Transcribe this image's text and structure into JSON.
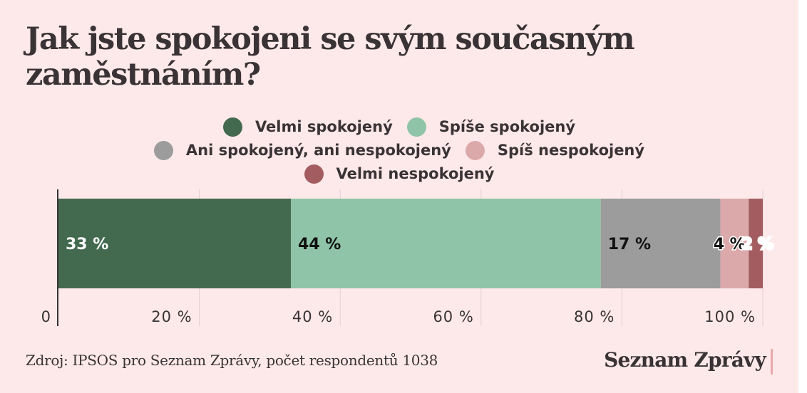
{
  "title": "Jak jste spokojeni se svým současným zaměstnáním?",
  "source": "Zdroj: IPSOS pro Seznam Zprávy, počet respondentů 1038",
  "brand": "Seznam Zprávy",
  "chart_data": {
    "type": "bar",
    "orientation": "horizontal-stacked",
    "title": "Jak jste spokojeni se svým současným zaměstnáním?",
    "categories": [
      ""
    ],
    "series": [
      {
        "name": "Velmi spokojený",
        "values": [
          33
        ],
        "label": "33 %",
        "color": "#43694e",
        "label_color": "#ffffff"
      },
      {
        "name": "Spíše spokojený",
        "values": [
          44
        ],
        "label": "44 %",
        "color": "#8fc4a8",
        "label_color": "#111111"
      },
      {
        "name": "Ani spokojený, ani nespokojený",
        "values": [
          17
        ],
        "label": "17 %",
        "color": "#9c9c9c",
        "label_color": "#111111"
      },
      {
        "name": "Spíš nespokojený",
        "values": [
          4
        ],
        "label": "4 %",
        "color": "#dca9ab",
        "label_color": "#111111"
      },
      {
        "name": "Velmi nespokojený",
        "values": [
          2
        ],
        "label": "2 %",
        "color": "#a35d61",
        "label_color": "#ffffff"
      }
    ],
    "xlim": [
      0,
      100
    ],
    "x_ticks": [
      {
        "value": 0,
        "label": "0"
      },
      {
        "value": 20,
        "label": "20 %"
      },
      {
        "value": 40,
        "label": "40 %"
      },
      {
        "value": 60,
        "label": "60 %"
      },
      {
        "value": 80,
        "label": "80 %"
      },
      {
        "value": 100,
        "label": "100 %"
      }
    ],
    "grid": true,
    "legend_position": "top-center",
    "legend_rows": [
      [
        0,
        1
      ],
      [
        2,
        3
      ],
      [
        4
      ]
    ]
  }
}
